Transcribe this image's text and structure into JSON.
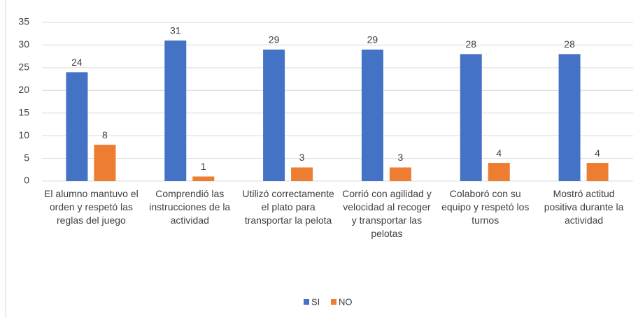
{
  "chart_data": {
    "type": "bar",
    "categories": [
      "El alumno mantuvo el orden y respetó las reglas del juego",
      "Comprendió las instrucciones de la actividad",
      "Utilizó correctamente el plato para transportar la pelota",
      "Corrió con agilidad y velocidad al recoger y transportar las pelotas",
      "Colaboró con su equipo y respetó los turnos",
      "Mostró actitud positiva durante la actividad"
    ],
    "series": [
      {
        "name": "SI",
        "color": "#4472c4",
        "values": [
          24,
          31,
          29,
          29,
          28,
          28
        ]
      },
      {
        "name": "NO",
        "color": "#ed7d31",
        "values": [
          8,
          1,
          3,
          3,
          4,
          4
        ]
      }
    ],
    "ylim": [
      0,
      35
    ],
    "yticks": [
      0,
      5,
      10,
      15,
      20,
      25,
      30,
      35
    ],
    "grid": true,
    "legend": "bottom"
  }
}
